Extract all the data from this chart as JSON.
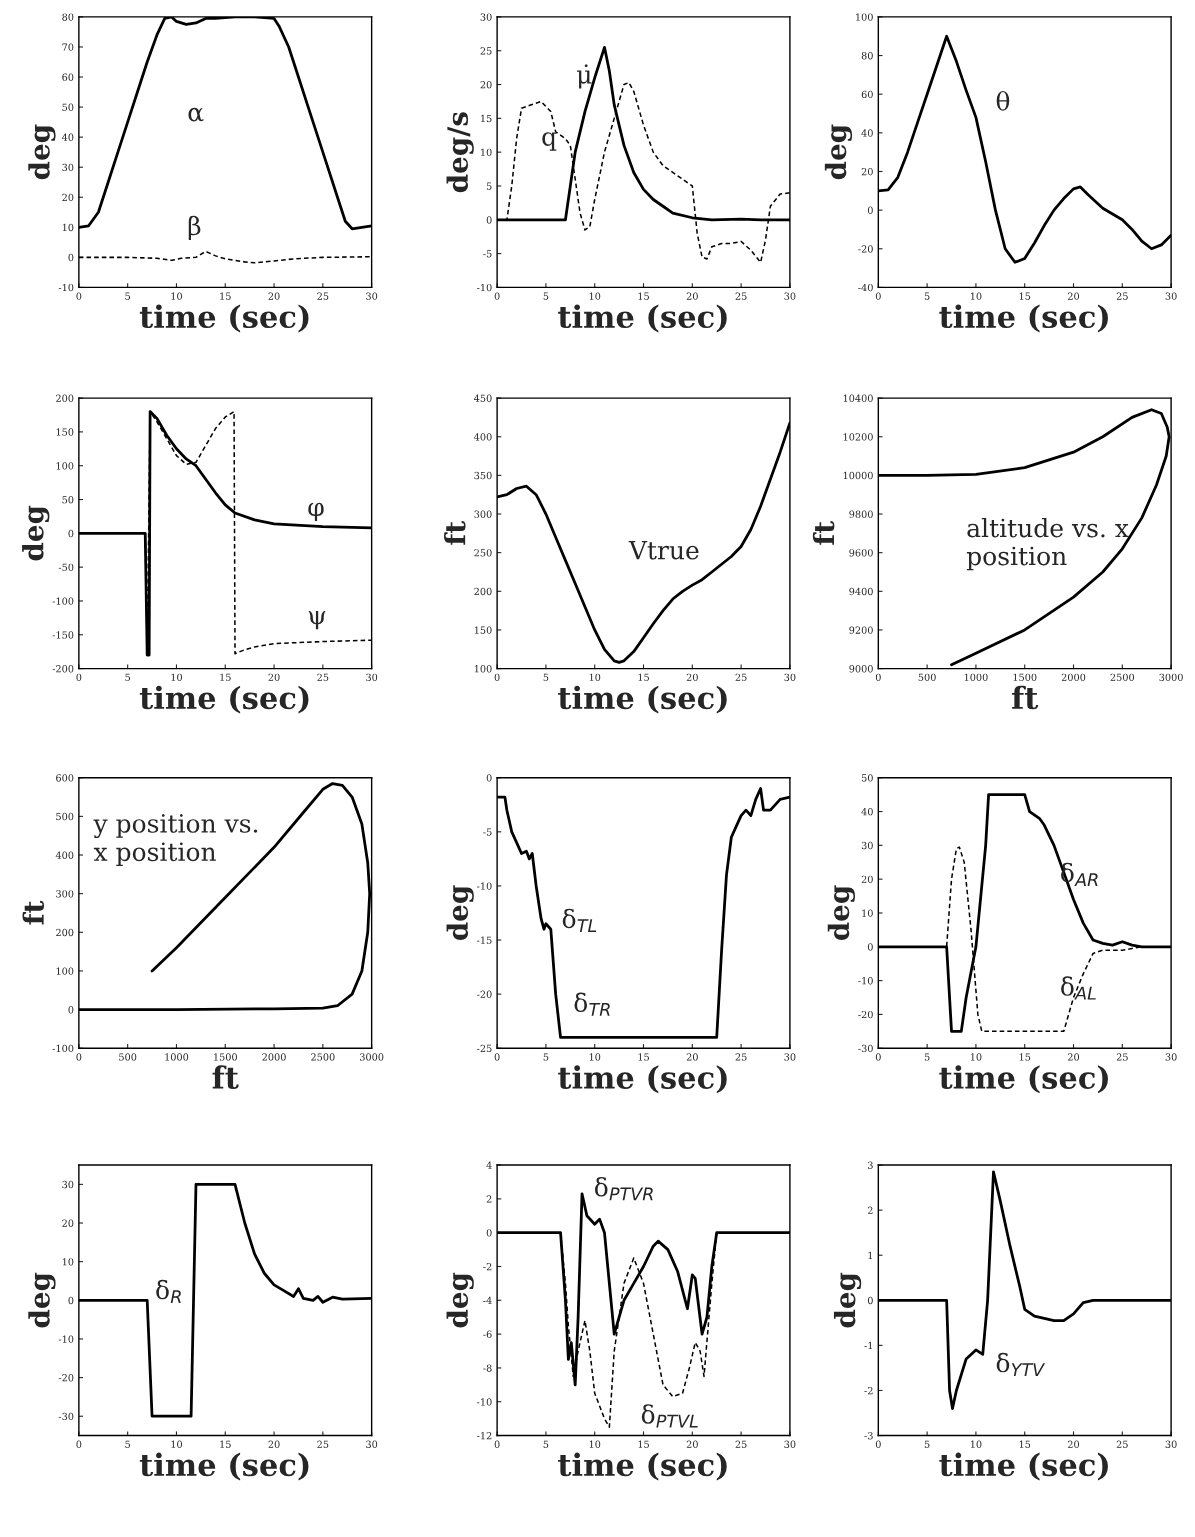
{
  "chart_data": [
    {
      "type": "line",
      "xlabel": "time (sec)",
      "ylabel": "deg",
      "xlim": [
        0,
        30
      ],
      "ylim": [
        -10,
        80
      ],
      "xticks": [
        0,
        5,
        10,
        15,
        20,
        25,
        30
      ],
      "yticks": [
        -10,
        0,
        10,
        20,
        30,
        40,
        50,
        60,
        70,
        80
      ],
      "grid": false,
      "series": [
        {
          "color": "#000000",
          "line_style": "solid",
          "x": [
            0,
            1,
            2,
            3,
            4,
            5,
            6,
            7,
            8,
            8.8,
            9.5,
            10,
            11,
            12,
            13,
            14,
            16,
            18,
            20,
            20.5,
            21.5,
            22.5,
            23.5,
            24.5,
            25.5,
            26.5,
            27.3,
            28,
            29,
            30
          ],
          "values": [
            10,
            10.5,
            15,
            25,
            35,
            45,
            55,
            65,
            74,
            79.5,
            80,
            78.5,
            77.5,
            78,
            79.5,
            79.5,
            80,
            80,
            79.5,
            77,
            70,
            60,
            50,
            40,
            30,
            20,
            12,
            9.5,
            10,
            10.5
          ]
        },
        {
          "color": "#000000",
          "line_style": "dashed",
          "x": [
            0,
            5,
            8,
            9.5,
            10.5,
            12,
            13,
            14,
            15,
            17,
            18,
            20,
            22,
            25,
            30
          ],
          "values": [
            0,
            0,
            -0.3,
            -1,
            -0.3,
            0,
            2,
            0.5,
            -0.5,
            -1.5,
            -1.8,
            -1.2,
            -0.5,
            0,
            0.2
          ]
        }
      ],
      "annotations": [
        "α",
        "β"
      ]
    },
    {
      "type": "line",
      "xlabel": "time (sec)",
      "ylabel": "deg/s",
      "xlim": [
        0,
        30
      ],
      "ylim": [
        -10,
        30
      ],
      "xticks": [
        0,
        5,
        10,
        15,
        20,
        25,
        30
      ],
      "yticks": [
        -10,
        -5,
        0,
        5,
        10,
        15,
        20,
        25,
        30
      ],
      "grid": false,
      "series": [
        {
          "color": "#000000",
          "line_style": "solid",
          "x": [
            0,
            7,
            7.5,
            8,
            9,
            10,
            11,
            11.5,
            12,
            13,
            14,
            15,
            16,
            17,
            18,
            20,
            22,
            25,
            27,
            30
          ],
          "values": [
            0,
            0,
            5,
            10,
            16,
            21,
            25.5,
            22,
            17,
            11,
            7,
            4.5,
            3,
            2,
            1,
            0.3,
            0,
            0.1,
            0,
            0
          ]
        },
        {
          "color": "#000000",
          "line_style": "dashed",
          "x": [
            0,
            1,
            1.5,
            2,
            2.5,
            3.5,
            4.5,
            5.5,
            6,
            7,
            7.5,
            8,
            8.5,
            9,
            9.5,
            10,
            11,
            12,
            13,
            13.5,
            14,
            15,
            16,
            17,
            18,
            19,
            20,
            20.5,
            21,
            21.5,
            22,
            23,
            24,
            25,
            26,
            27,
            27.5,
            28,
            29,
            30
          ],
          "values": [
            0,
            0,
            5,
            12,
            16.5,
            17,
            17.5,
            16,
            13,
            12,
            11,
            6,
            1,
            -1.5,
            -1,
            3,
            10,
            15,
            20,
            20.3,
            19,
            14,
            10,
            8,
            7,
            6,
            5,
            -2,
            -5.5,
            -5.8,
            -4,
            -3.5,
            -3.5,
            -3.2,
            -4.5,
            -6.3,
            -3,
            2,
            3.8,
            4
          ]
        }
      ],
      "annotations": [
        "μ̇",
        "q"
      ]
    },
    {
      "type": "line",
      "xlabel": "time (sec)",
      "ylabel": "deg",
      "xlim": [
        0,
        30
      ],
      "ylim": [
        -40,
        100
      ],
      "xticks": [
        0,
        5,
        10,
        15,
        20,
        25,
        30
      ],
      "yticks": [
        -40,
        -20,
        0,
        20,
        40,
        60,
        80,
        100
      ],
      "grid": false,
      "series": [
        {
          "color": "#000000",
          "line_style": "solid",
          "x": [
            0,
            1,
            2,
            3,
            4,
            5,
            6,
            7,
            8,
            9,
            10,
            11,
            12,
            13,
            14,
            15,
            16,
            17,
            18,
            19,
            20,
            20.7,
            21.5,
            23,
            25,
            26,
            27,
            28,
            29,
            30
          ],
          "values": [
            10,
            10.5,
            17,
            30,
            45,
            60,
            75,
            90,
            77,
            62,
            48,
            25,
            0,
            -20,
            -27,
            -25,
            -17,
            -8,
            0,
            6,
            11,
            12,
            8,
            1,
            -5,
            -10,
            -16,
            -20,
            -18,
            -13
          ]
        }
      ],
      "annotations": [
        "θ"
      ]
    },
    {
      "type": "line",
      "xlabel": "time (sec)",
      "ylabel": "deg",
      "xlim": [
        0,
        30
      ],
      "ylim": [
        -200,
        200
      ],
      "xticks": [
        0,
        5,
        10,
        15,
        20,
        25,
        30
      ],
      "yticks": [
        -200,
        -150,
        -100,
        -50,
        0,
        50,
        100,
        150,
        200
      ],
      "grid": false,
      "series": [
        {
          "color": "#000000",
          "line_style": "solid",
          "x": [
            0,
            6.8,
            7,
            7.2,
            7.3,
            8,
            9,
            10,
            11,
            12,
            13,
            14,
            15,
            16,
            18,
            20,
            25,
            30
          ],
          "values": [
            0,
            0,
            -180,
            -180,
            180,
            170,
            145,
            125,
            110,
            100,
            80,
            60,
            42,
            30,
            20,
            14,
            10,
            8
          ]
        },
        {
          "color": "#000000",
          "line_style": "dashed",
          "x": [
            0,
            6.8,
            7,
            7.3,
            8,
            9,
            10,
            11,
            12,
            13,
            14,
            15,
            15.9,
            16,
            17,
            18,
            20,
            25,
            30
          ],
          "values": [
            0,
            0,
            -180,
            180,
            165,
            140,
            115,
            102,
            105,
            130,
            155,
            172,
            180,
            -178,
            -172,
            -168,
            -163,
            -160,
            -158
          ]
        }
      ],
      "annotations": [
        "φ",
        "ψ"
      ]
    },
    {
      "type": "line",
      "xlabel": "time (sec)",
      "ylabel": "ft",
      "xlim": [
        0,
        30
      ],
      "ylim": [
        100,
        450
      ],
      "xticks": [
        0,
        5,
        10,
        15,
        20,
        25,
        30
      ],
      "yticks": [
        100,
        150,
        200,
        250,
        300,
        350,
        400,
        450
      ],
      "grid": false,
      "series": [
        {
          "color": "#000000",
          "line_style": "solid",
          "x": [
            0,
            1,
            2,
            3,
            4,
            5,
            6,
            7,
            8,
            9,
            10,
            11,
            12,
            12.5,
            13,
            14,
            15,
            16,
            17,
            18,
            19,
            20,
            21,
            22,
            23,
            24,
            25,
            26,
            27,
            28,
            29,
            30
          ],
          "values": [
            322,
            325,
            333,
            336,
            325,
            300,
            270,
            240,
            210,
            180,
            150,
            125,
            110,
            108,
            110,
            122,
            140,
            158,
            175,
            190,
            200,
            208,
            215,
            225,
            235,
            245,
            258,
            280,
            310,
            345,
            380,
            418
          ]
        }
      ],
      "annotations": [
        "Vtrue"
      ]
    },
    {
      "type": "line",
      "xlabel": "ft",
      "ylabel": "ft",
      "xlim": [
        0,
        3000
      ],
      "ylim": [
        9000,
        10400
      ],
      "xticks": [
        0,
        500,
        1000,
        1500,
        2000,
        2500,
        3000
      ],
      "yticks": [
        9000,
        9200,
        9400,
        9600,
        9800,
        10000,
        10200,
        10400
      ],
      "grid": false,
      "series": [
        {
          "color": "#000000",
          "line_style": "solid",
          "x": [
            0,
            500,
            1000,
            1500,
            2000,
            2300,
            2600,
            2800,
            2900,
            2960,
            2980,
            2950,
            2850,
            2700,
            2500,
            2300,
            2000,
            1500,
            1000,
            750
          ],
          "values": [
            10000,
            10000,
            10005,
            10040,
            10120,
            10200,
            10300,
            10340,
            10320,
            10250,
            10200,
            10100,
            9950,
            9780,
            9620,
            9500,
            9370,
            9200,
            9080,
            9020
          ]
        }
      ],
      "annotations": [
        "altitude vs. x\nposition"
      ]
    },
    {
      "type": "line",
      "xlabel": "ft",
      "ylabel": "ft",
      "xlim": [
        0,
        3000
      ],
      "ylim": [
        -100,
        600
      ],
      "xticks": [
        0,
        500,
        1000,
        1500,
        2000,
        2500,
        3000
      ],
      "yticks": [
        -100,
        0,
        100,
        200,
        300,
        400,
        500,
        600
      ],
      "grid": false,
      "series": [
        {
          "color": "#000000",
          "line_style": "solid",
          "x": [
            750,
            1000,
            1500,
            2000,
            2300,
            2500,
            2600,
            2700,
            2800,
            2900,
            2960,
            2980,
            2960,
            2900,
            2800,
            2650,
            2500,
            2000,
            1000,
            0
          ],
          "values": [
            100,
            160,
            290,
            420,
            510,
            570,
            585,
            580,
            550,
            480,
            380,
            300,
            200,
            100,
            40,
            10,
            4,
            2,
            0,
            0
          ]
        }
      ],
      "annotations": [
        "y position vs.\nx position"
      ]
    },
    {
      "type": "line",
      "xlabel": "time (sec)",
      "ylabel": "deg",
      "xlim": [
        0,
        30
      ],
      "ylim": [
        -25,
        0
      ],
      "xticks": [
        0,
        5,
        10,
        15,
        20,
        25,
        30
      ],
      "yticks": [
        -25,
        -20,
        -15,
        -10,
        -5,
        0
      ],
      "grid": false,
      "series": [
        {
          "color": "#000000",
          "line_style": "solid",
          "x": [
            0,
            0.8,
            1,
            1.5,
            2,
            2.5,
            3,
            3.3,
            3.6,
            4,
            4.5,
            4.8,
            5,
            5.5,
            6,
            6.5,
            10,
            15,
            20,
            22.5,
            23,
            23.5,
            24,
            24.5,
            25,
            25.5,
            26,
            26.5,
            27,
            27.3,
            28,
            29,
            30
          ],
          "values": [
            -1.8,
            -1.8,
            -3,
            -5,
            -6,
            -7,
            -6.8,
            -7.5,
            -7,
            -10,
            -13,
            -14,
            -13.5,
            -14,
            -20,
            -24,
            -24,
            -24,
            -24,
            -24,
            -16,
            -9,
            -5.5,
            -4.5,
            -3.5,
            -3,
            -3.5,
            -2,
            -1,
            -3,
            -3,
            -2,
            -1.8
          ]
        }
      ],
      "annotations": [
        "δ$_{TL}$",
        "δ$_{TR}$"
      ]
    },
    {
      "type": "line",
      "xlabel": "time (sec)",
      "ylabel": "deg",
      "xlim": [
        0,
        30
      ],
      "ylim": [
        -30,
        50
      ],
      "xticks": [
        0,
        5,
        10,
        15,
        20,
        25,
        30
      ],
      "yticks": [
        -30,
        -20,
        -10,
        0,
        10,
        20,
        30,
        40,
        50
      ],
      "grid": false,
      "series": [
        {
          "color": "#000000",
          "line_style": "solid",
          "x": [
            0,
            7,
            7.5,
            8.5,
            9,
            10,
            11,
            11.3,
            15,
            15.5,
            16.5,
            17,
            18,
            19,
            20,
            21,
            22,
            23,
            24,
            25,
            26,
            27,
            30
          ],
          "values": [
            0,
            0,
            -25,
            -25,
            -15,
            0,
            30,
            45,
            45,
            40,
            38,
            36,
            30,
            22,
            14,
            7,
            2,
            1,
            0.5,
            1.5,
            0.5,
            0,
            0
          ]
        },
        {
          "color": "#000000",
          "line_style": "dashed",
          "x": [
            0,
            7,
            7.5,
            8,
            8.3,
            8.8,
            9.5,
            10.2,
            10.6,
            15,
            19,
            20,
            21,
            22,
            23,
            25,
            26,
            27,
            30
          ],
          "values": [
            0,
            0,
            20,
            29,
            29.5,
            25,
            5,
            -20,
            -25,
            -25,
            -25,
            -15,
            -8,
            -2,
            -1,
            -1,
            -0.5,
            0,
            0
          ]
        }
      ],
      "annotations": [
        "δ$_{AR}$",
        "δ$_{AL}$"
      ]
    },
    {
      "type": "line",
      "xlabel": "time (sec)",
      "ylabel": "deg",
      "xlim": [
        0,
        30
      ],
      "ylim": [
        -35,
        35
      ],
      "xticks": [
        0,
        5,
        10,
        15,
        20,
        25,
        30
      ],
      "yticks": [
        -30,
        -20,
        -10,
        0,
        10,
        20,
        30
      ],
      "grid": false,
      "series": [
        {
          "color": "#000000",
          "line_style": "solid",
          "x": [
            0,
            7,
            7.5,
            11.5,
            12,
            16,
            17,
            18,
            19,
            20,
            21,
            22,
            22.5,
            23,
            24,
            24.5,
            25,
            26,
            27,
            30
          ],
          "values": [
            0,
            0,
            -30,
            -30,
            30,
            30,
            20,
            12,
            7,
            4,
            2.5,
            1,
            3,
            0.5,
            0,
            1,
            -0.5,
            0.8,
            0.3,
            0.5
          ]
        }
      ],
      "annotations": [
        "δ$_{R}$"
      ]
    },
    {
      "type": "line",
      "xlabel": "time (sec)",
      "ylabel": "deg",
      "xlim": [
        0,
        30
      ],
      "ylim": [
        -12,
        4
      ],
      "xticks": [
        0,
        5,
        10,
        15,
        20,
        25,
        30
      ],
      "yticks": [
        -12,
        -10,
        -8,
        -6,
        -4,
        -2,
        0,
        2,
        4
      ],
      "grid": false,
      "series": [
        {
          "color": "#000000",
          "line_style": "solid",
          "x": [
            0,
            6.5,
            7,
            7.3,
            7.6,
            8,
            8.3,
            8.7,
            9.2,
            10,
            10.5,
            11,
            11.5,
            12,
            13,
            14,
            15,
            16,
            16.5,
            17.5,
            18.5,
            19.5,
            20,
            20.3,
            21,
            21.5,
            22,
            22.5,
            30
          ],
          "values": [
            0,
            0,
            -4,
            -7.5,
            -6.5,
            -9,
            -5,
            2.3,
            1,
            0.5,
            0.8,
            0,
            -3,
            -6,
            -4,
            -3,
            -2,
            -0.8,
            -0.5,
            -1,
            -2.3,
            -4.5,
            -2.5,
            -2.7,
            -6,
            -5,
            -2,
            0,
            0
          ]
        },
        {
          "color": "#000000",
          "line_style": "dashed",
          "x": [
            0,
            6.5,
            7,
            7.3,
            7.8,
            8.3,
            9,
            9.5,
            10,
            11,
            11.5,
            12,
            13,
            14,
            15,
            16,
            17,
            18,
            19,
            19.7,
            20.3,
            20.8,
            21.2,
            22,
            22.5,
            30
          ],
          "values": [
            0,
            0,
            -3,
            -5.5,
            -8.5,
            -7,
            -5.2,
            -7,
            -9.5,
            -11,
            -11.5,
            -7,
            -3,
            -1.5,
            -3,
            -6,
            -9,
            -9.7,
            -9.5,
            -8,
            -6.5,
            -7,
            -8.5,
            -3,
            0,
            0
          ]
        }
      ],
      "annotations": [
        "δ$_{PTVR}$",
        "δ$_{PTVL}$"
      ]
    },
    {
      "type": "line",
      "xlabel": "time (sec)",
      "ylabel": "deg",
      "xlim": [
        0,
        30
      ],
      "ylim": [
        -3,
        3
      ],
      "xticks": [
        0,
        5,
        10,
        15,
        20,
        25,
        30
      ],
      "yticks": [
        -3,
        -2,
        -1,
        0,
        1,
        2,
        3
      ],
      "grid": false,
      "series": [
        {
          "color": "#000000",
          "line_style": "solid",
          "x": [
            0,
            7,
            7.3,
            7.6,
            8,
            9,
            10,
            10.7,
            11.2,
            11.8,
            12.5,
            13.5,
            14.5,
            15,
            16,
            17,
            18,
            19,
            20,
            21,
            22,
            30
          ],
          "values": [
            0,
            0,
            -2,
            -2.4,
            -2,
            -1.3,
            -1.1,
            -1.2,
            0,
            2.85,
            2.2,
            1.2,
            0.3,
            -0.2,
            -0.35,
            -0.4,
            -0.45,
            -0.45,
            -0.3,
            -0.05,
            0,
            0
          ]
        }
      ],
      "annotations": [
        "δ$_{YTV}$"
      ]
    }
  ]
}
